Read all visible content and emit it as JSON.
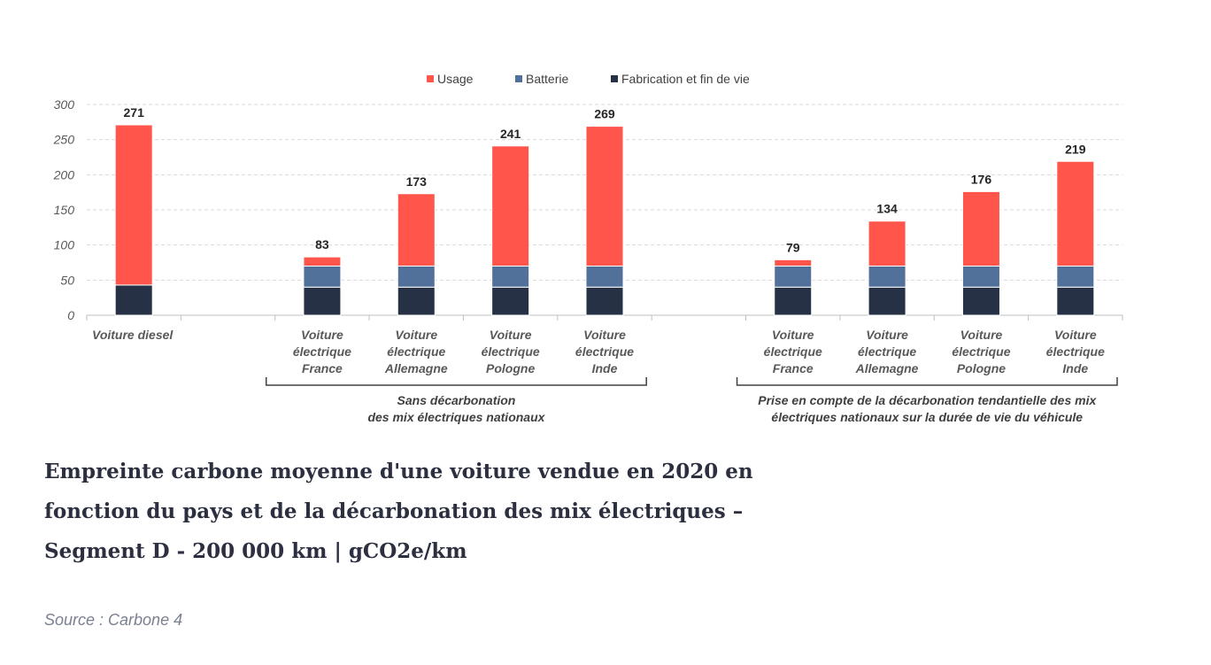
{
  "chart_data": {
    "type": "bar",
    "stacked": true,
    "categories": [
      "Voiture diesel",
      "Voiture électrique France",
      "Voiture électrique Allemagne",
      "Voiture électrique Pologne",
      "Voiture électrique Inde",
      "Voiture électrique France",
      "Voiture électrique Allemagne",
      "Voiture électrique Pologne",
      "Voiture électrique Inde"
    ],
    "category_lines": [
      [
        "Voiture diesel"
      ],
      [
        "Voiture",
        "électrique",
        "France"
      ],
      [
        "Voiture",
        "électrique",
        "Allemagne"
      ],
      [
        "Voiture",
        "électrique",
        "Pologne"
      ],
      [
        "Voiture",
        "électrique",
        "Inde"
      ],
      [
        "Voiture",
        "électrique",
        "France"
      ],
      [
        "Voiture",
        "électrique",
        "Allemagne"
      ],
      [
        "Voiture",
        "électrique",
        "Pologne"
      ],
      [
        "Voiture",
        "électrique",
        "Inde"
      ]
    ],
    "series": [
      {
        "name": "Fabrication et fin de vie",
        "color": "#263145",
        "values": [
          43,
          40,
          40,
          40,
          40,
          40,
          40,
          40,
          40
        ]
      },
      {
        "name": "Batterie",
        "color": "#52719a",
        "values": [
          0,
          30,
          30,
          30,
          30,
          30,
          30,
          30,
          30
        ]
      },
      {
        "name": "Usage",
        "color": "#ff554b",
        "values": [
          228,
          13,
          103,
          171,
          199,
          9,
          64,
          106,
          149
        ]
      }
    ],
    "totals": [
      "271",
      "83",
      "173",
      "241",
      "269",
      "79",
      "134",
      "176",
      "219"
    ],
    "legend_order": [
      "Usage",
      "Batterie",
      "Fabrication et fin de vie"
    ],
    "legend_position": "top",
    "groups": [
      {
        "lines": [
          "Sans décarbonation",
          "des mix électriques nationaux"
        ],
        "from": 1,
        "to": 4
      },
      {
        "lines": [
          "Prise en compte de la décarbonation tendantielle des mix",
          "électriques nationaux sur la durée de vie du véhicule"
        ],
        "from": 5,
        "to": 8
      }
    ],
    "y_ticks": [
      "0",
      "50",
      "100",
      "150",
      "200",
      "250",
      "300"
    ],
    "ylim": [
      0,
      300
    ],
    "grid": "horizontal dashed"
  },
  "caption": {
    "title": "Empreinte carbone moyenne d'une voiture vendue en 2020 en fonction du pays et de la décarbonation des mix électriques – Segment D - 200 000 km | gCO2e/km",
    "source": "Source : Carbone 4"
  }
}
